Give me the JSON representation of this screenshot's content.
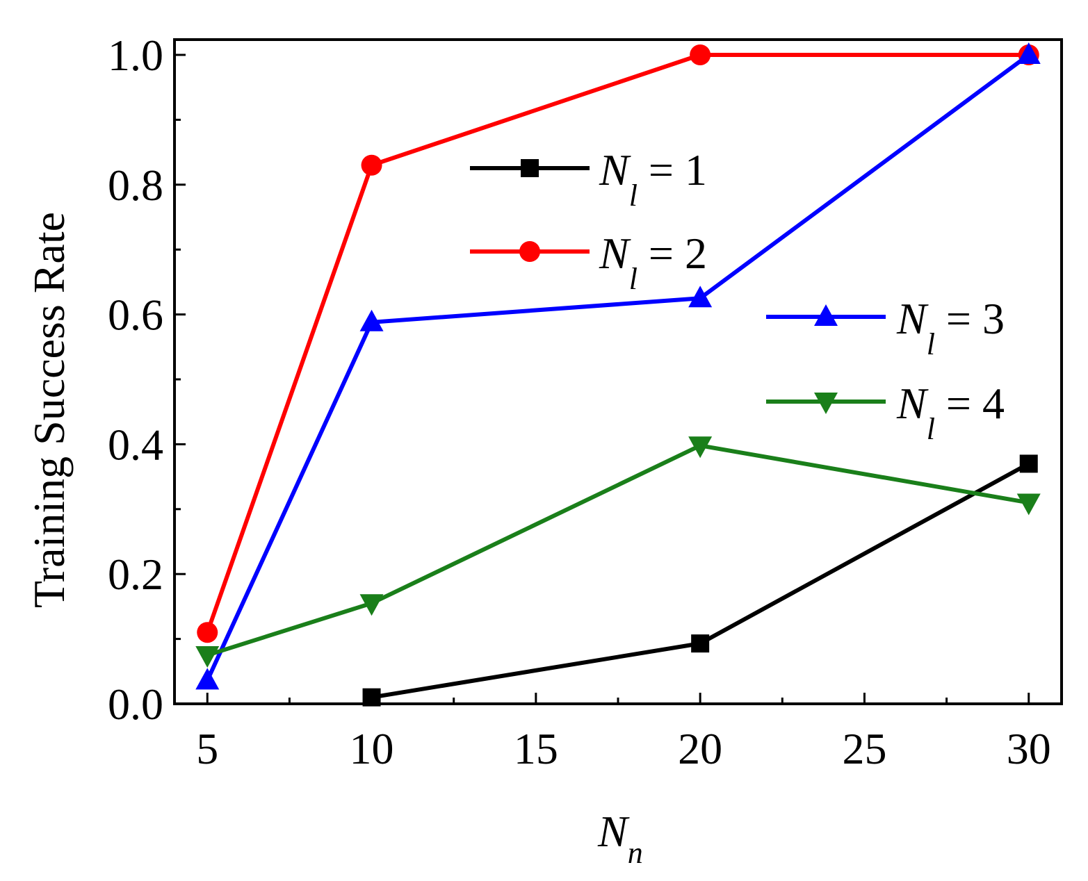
{
  "chart_data": {
    "type": "line",
    "title": "",
    "xlabel": {
      "main": "N",
      "sub": "n"
    },
    "ylabel": "Training Success Rate",
    "xlim": [
      4,
      31
    ],
    "ylim": [
      0,
      1.0
    ],
    "xticks": [
      5,
      10,
      15,
      20,
      25,
      30
    ],
    "xtick_labels": [
      "5",
      "10",
      "15",
      "20",
      "25",
      "30"
    ],
    "yticks": [
      0.0,
      0.2,
      0.4,
      0.6,
      0.8,
      1.0
    ],
    "ytick_labels": [
      "0.0",
      "0.2",
      "0.4",
      "0.6",
      "0.8",
      "1.0"
    ],
    "grid": false,
    "legend_placement": "center",
    "series": [
      {
        "name": "N_l = 1",
        "label_main": "N",
        "label_sub": "l",
        "label_rest": " = 1",
        "color": "#000000",
        "marker": "square",
        "x": [
          10,
          20,
          30
        ],
        "y": [
          0.01,
          0.093,
          0.37
        ]
      },
      {
        "name": "N_l = 2",
        "label_main": "N",
        "label_sub": "l",
        "label_rest": " = 2",
        "color": "#ff0000",
        "marker": "circle",
        "x": [
          5,
          10,
          20,
          30
        ],
        "y": [
          0.11,
          0.83,
          1.0,
          1.0
        ]
      },
      {
        "name": "N_l = 3",
        "label_main": "N",
        "label_sub": "l",
        "label_rest": " = 3",
        "color": "#0000ff",
        "marker": "triangle-up",
        "x": [
          5,
          10,
          20,
          30
        ],
        "y": [
          0.036,
          0.588,
          0.625,
          1.0
        ]
      },
      {
        "name": "N_l = 4",
        "label_main": "N",
        "label_sub": "l",
        "label_rest": " = 4",
        "color": "#1a7f1a",
        "marker": "triangle-down",
        "x": [
          5,
          10,
          20,
          30
        ],
        "y": [
          0.075,
          0.155,
          0.398,
          0.31
        ]
      }
    ]
  }
}
